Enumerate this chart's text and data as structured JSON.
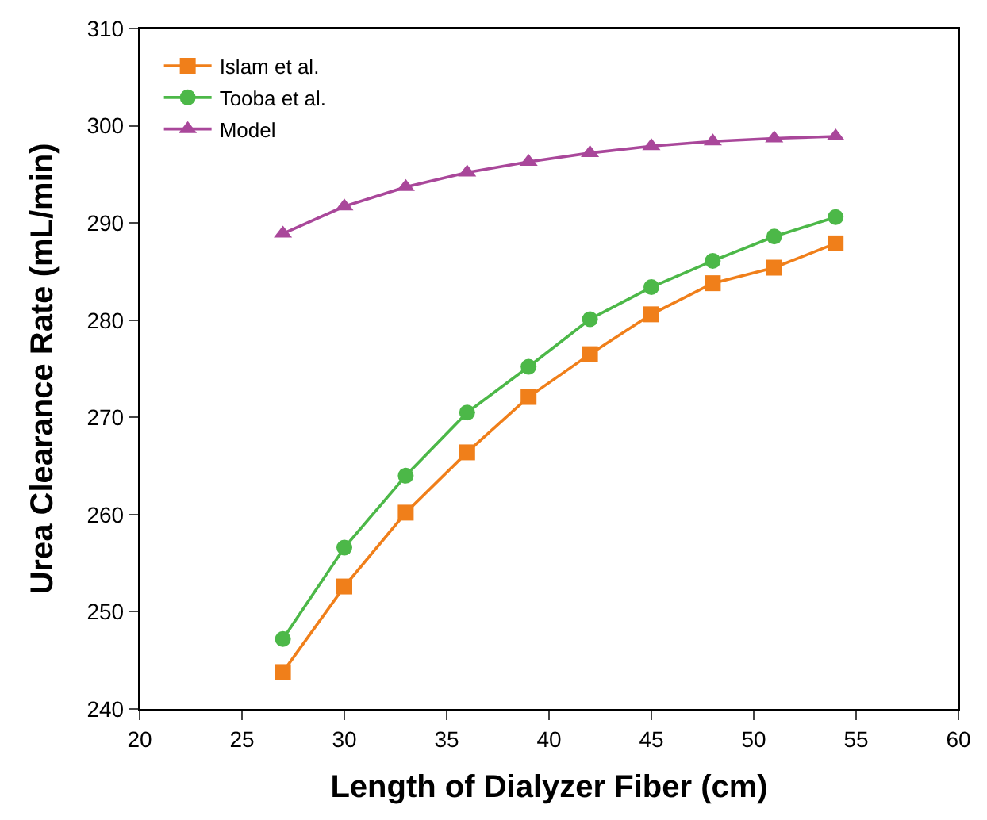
{
  "chart_data": {
    "type": "line",
    "xlabel": "Length of Dialyzer Fiber (cm)",
    "ylabel": "Urea Clearance Rate (mL/min)",
    "x": [
      27,
      30,
      33,
      36,
      39,
      42,
      45,
      48,
      51,
      54
    ],
    "series": [
      {
        "name": "Islam et al.",
        "color": "#f07f1a",
        "marker": "square",
        "values": [
          243.8,
          252.6,
          260.2,
          266.4,
          272.1,
          276.5,
          280.6,
          283.8,
          285.4,
          287.9
        ]
      },
      {
        "name": "Tooba et al.",
        "color": "#4cb848",
        "marker": "circle",
        "values": [
          247.2,
          256.6,
          264.0,
          270.5,
          275.2,
          280.1,
          283.4,
          286.1,
          288.6,
          290.6
        ]
      },
      {
        "name": "Model",
        "color": "#a9479a",
        "marker": "triangle",
        "values": [
          288.9,
          291.7,
          293.7,
          295.2,
          296.3,
          297.2,
          297.9,
          298.4,
          298.7,
          298.9
        ]
      }
    ],
    "xlim": [
      20,
      60
    ],
    "xticks": [
      20,
      25,
      30,
      35,
      40,
      45,
      50,
      55,
      60
    ],
    "ylim": [
      240,
      310
    ],
    "yticks": [
      240,
      250,
      260,
      270,
      280,
      290,
      300,
      310
    ],
    "legend": "top left",
    "line_style": "solid"
  }
}
